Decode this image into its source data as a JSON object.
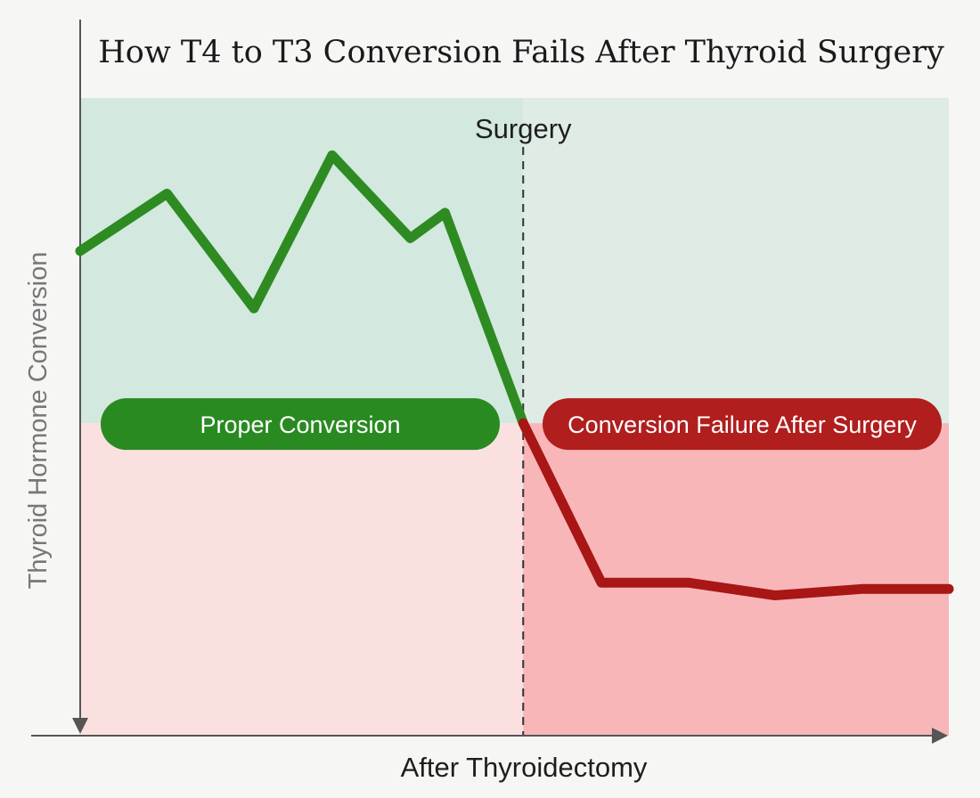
{
  "chart_data": {
    "type": "line",
    "title": "How T4 to T3 Conversion Fails After Thyroid Surgery",
    "xlabel": "After Thyroidectomy",
    "ylabel": "Thyroid Hormone Conversion",
    "marker": {
      "label": "Surgery",
      "x": 0.51
    },
    "threshold_y": 0.49,
    "regions": [
      {
        "label": "Proper Conversion",
        "color": "#2a8a22"
      },
      {
        "label": "Conversion Failure After Surgery",
        "color": "#b01e1e"
      }
    ],
    "series": [
      {
        "color": "#2e8b22",
        "x": [
          0.0,
          0.1,
          0.2,
          0.29,
          0.38,
          0.42,
          0.51
        ],
        "y": [
          0.76,
          0.85,
          0.67,
          0.91,
          0.78,
          0.82,
          0.49
        ]
      },
      {
        "color": "#a81616",
        "x": [
          0.51,
          0.6,
          0.7,
          0.8,
          0.9,
          1.0
        ],
        "y": [
          0.49,
          0.24,
          0.24,
          0.22,
          0.23,
          0.23
        ]
      }
    ],
    "xlim": [
      0,
      1
    ],
    "ylim": [
      0,
      1
    ],
    "grid": false
  }
}
